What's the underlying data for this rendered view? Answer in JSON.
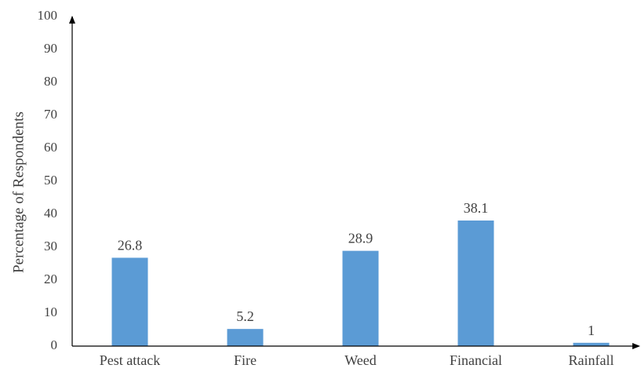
{
  "chart_data": {
    "type": "bar",
    "title": "",
    "xlabel": "",
    "ylabel": "Percentage  of Respondents",
    "categories": [
      "Pest attack",
      "Fire",
      "Weed",
      "Financial",
      "Rainfall"
    ],
    "values": [
      26.8,
      5.2,
      28.9,
      38.1,
      1
    ],
    "data_labels": [
      "26.8",
      "5.2",
      "28.9",
      "38.1",
      "1"
    ],
    "ylim": [
      0,
      100
    ],
    "yticks": [
      "0",
      "10",
      "20",
      "30",
      "40",
      "50",
      "60",
      "70",
      "80",
      "90",
      "100"
    ],
    "grid": false,
    "legend": "none",
    "bar_color": "#5b9bd5",
    "axis_color": "#000000"
  }
}
